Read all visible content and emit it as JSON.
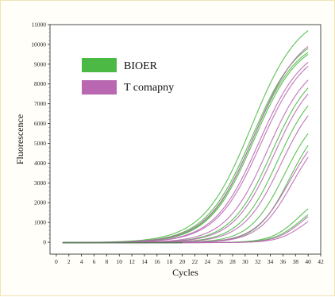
{
  "chart_data": {
    "type": "line",
    "xlabel": "Cycles",
    "ylabel": "Fluorescence",
    "xlim": [
      -1,
      42
    ],
    "ylim": [
      -600,
      11000
    ],
    "x_ticks": [
      0,
      2,
      4,
      6,
      8,
      10,
      12,
      14,
      16,
      18,
      20,
      22,
      24,
      26,
      28,
      30,
      32,
      34,
      36,
      38,
      40,
      42
    ],
    "y_ticks": [
      0,
      1000,
      2000,
      3000,
      4000,
      5000,
      6000,
      7000,
      8000,
      9000,
      10000,
      11000
    ],
    "legend_placement": "top-left",
    "series_groups": [
      {
        "name": "BIOER",
        "color": "#4cb944",
        "curves": [
          {
            "y40": 10700,
            "mid": 31.0,
            "slope": 0.26
          },
          {
            "y40": 9800,
            "mid": 31.1,
            "slope": 0.27
          },
          {
            "y40": 9600,
            "mid": 31.2,
            "slope": 0.28
          },
          {
            "y40": 9500,
            "mid": 31.4,
            "slope": 0.28
          },
          {
            "y40": 7800,
            "mid": 34.2,
            "slope": 0.31
          },
          {
            "y40": 6900,
            "mid": 35.2,
            "slope": 0.33
          },
          {
            "y40": 5500,
            "mid": 36.3,
            "slope": 0.36
          },
          {
            "y40": 4900,
            "mid": 37.1,
            "slope": 0.38
          },
          {
            "y40": 1700,
            "mid": 38.6,
            "slope": 0.45
          },
          {
            "y40": 1400,
            "mid": 38.9,
            "slope": 0.46
          }
        ]
      },
      {
        "name": "T comapny",
        "color": "#b867b0",
        "curves": [
          {
            "y40": 9900,
            "mid": 31.5,
            "slope": 0.27
          },
          {
            "y40": 9100,
            "mid": 32.2,
            "slope": 0.28
          },
          {
            "y40": 8900,
            "mid": 32.5,
            "slope": 0.28
          },
          {
            "y40": 8200,
            "mid": 33.6,
            "slope": 0.3
          },
          {
            "y40": 7500,
            "mid": 34.6,
            "slope": 0.31
          },
          {
            "y40": 6400,
            "mid": 35.7,
            "slope": 0.33
          },
          {
            "y40": 4600,
            "mid": 37.1,
            "slope": 0.36
          },
          {
            "y40": 4300,
            "mid": 37.5,
            "slope": 0.37
          },
          {
            "y40": 1300,
            "mid": 39.0,
            "slope": 0.48
          },
          {
            "y40": 1050,
            "mid": 39.2,
            "slope": 0.5
          }
        ]
      }
    ]
  }
}
